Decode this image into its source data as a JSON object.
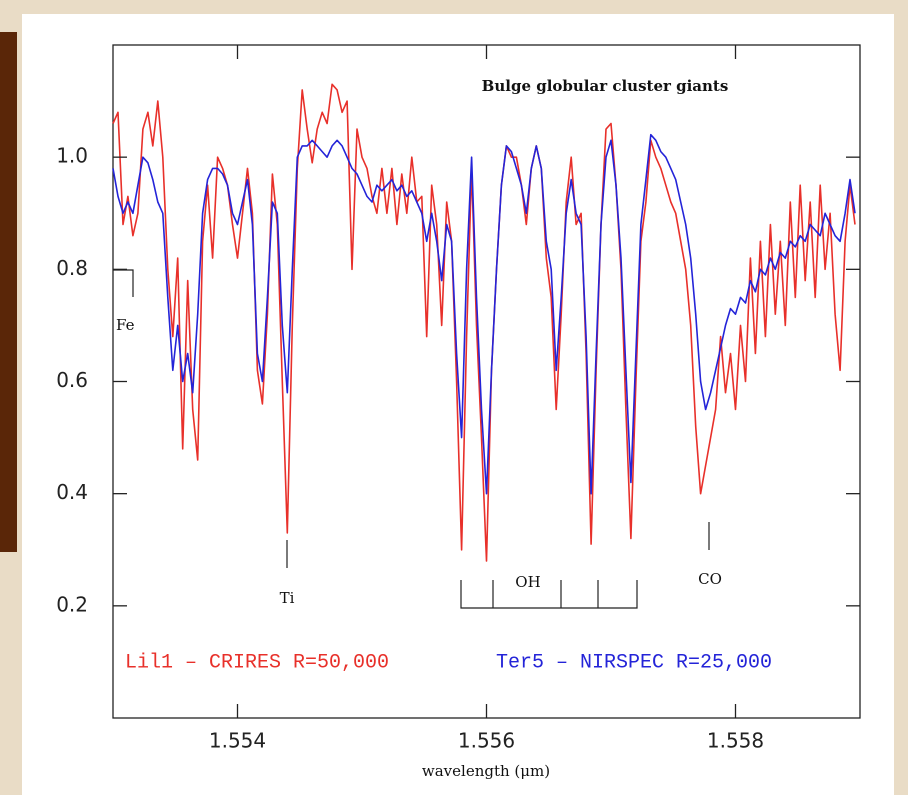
{
  "chart_data": {
    "type": "line",
    "title": "Bulge globular cluster giants",
    "xlabel": "wavelength (μm)",
    "xlim": [
      1.553,
      1.559
    ],
    "ylim": [
      0,
      1.2
    ],
    "xticks": [
      1.554,
      1.556,
      1.558
    ],
    "yticks": [
      0.2,
      0.4,
      0.6,
      0.8,
      {
        "value": 1,
        "label": "1.0"
      }
    ],
    "annotations": [
      "Fe",
      "Ti",
      "OH",
      "CO"
    ],
    "x": [
      1.553,
      1.55304,
      1.55308,
      1.55312,
      1.55316,
      1.5532,
      1.55324,
      1.55328,
      1.55332,
      1.55336,
      1.5534,
      1.55344,
      1.55348,
      1.55352,
      1.55356,
      1.5536,
      1.55364,
      1.55368,
      1.55372,
      1.55376,
      1.5538,
      1.55384,
      1.55388,
      1.55392,
      1.55396,
      1.554,
      1.55404,
      1.55408,
      1.55412,
      1.55416,
      1.5542,
      1.55424,
      1.55428,
      1.55432,
      1.55436,
      1.5544,
      1.55444,
      1.55448,
      1.55452,
      1.55456,
      1.5546,
      1.55464,
      1.55468,
      1.55472,
      1.55476,
      1.5548,
      1.55484,
      1.55488,
      1.55492,
      1.55496,
      1.555,
      1.55504,
      1.55508,
      1.55512,
      1.55516,
      1.5552,
      1.55524,
      1.55528,
      1.55532,
      1.55536,
      1.5554,
      1.55544,
      1.55548,
      1.55552,
      1.55556,
      1.5556,
      1.55564,
      1.55568,
      1.55572,
      1.55576,
      1.5558,
      1.55584,
      1.55588,
      1.55592,
      1.55596,
      1.556,
      1.55604,
      1.55608,
      1.55612,
      1.55616,
      1.5562,
      1.55624,
      1.55628,
      1.55632,
      1.55636,
      1.5564,
      1.55644,
      1.55648,
      1.55652,
      1.55656,
      1.5566,
      1.55664,
      1.55668,
      1.55672,
      1.55676,
      1.5568,
      1.55684,
      1.55688,
      1.55692,
      1.55696,
      1.557,
      1.55704,
      1.55708,
      1.55712,
      1.55716,
      1.5572,
      1.55724,
      1.55728,
      1.55732,
      1.55736,
      1.5574,
      1.55744,
      1.55748,
      1.55752,
      1.55756,
      1.5576,
      1.55764,
      1.55768,
      1.55772,
      1.55776,
      1.5578,
      1.55784,
      1.55788,
      1.55792,
      1.55796,
      1.558,
      1.55804,
      1.55808,
      1.55812,
      1.55816,
      1.5582,
      1.55824,
      1.55828,
      1.55832,
      1.55836,
      1.5584,
      1.55844,
      1.55848,
      1.55852,
      1.55856,
      1.5586,
      1.55864,
      1.55868,
      1.55872,
      1.55876,
      1.5588,
      1.55884,
      1.55888,
      1.55892,
      1.55896
    ],
    "series": [
      {
        "name": "Lil1 – CRIRES R=50,000",
        "color": "#e8302a",
        "values": [
          1.06,
          1.08,
          0.88,
          0.93,
          0.86,
          0.9,
          1.05,
          1.08,
          1.02,
          1.1,
          1.0,
          0.8,
          0.68,
          0.82,
          0.48,
          0.78,
          0.55,
          0.46,
          0.85,
          0.95,
          0.82,
          1.0,
          0.98,
          0.95,
          0.88,
          0.82,
          0.9,
          0.98,
          0.9,
          0.62,
          0.56,
          0.72,
          0.97,
          0.88,
          0.6,
          0.33,
          0.7,
          0.98,
          1.12,
          1.05,
          0.99,
          1.05,
          1.08,
          1.06,
          1.13,
          1.12,
          1.08,
          1.1,
          0.8,
          1.05,
          1.0,
          0.98,
          0.93,
          0.9,
          0.98,
          0.9,
          0.98,
          0.88,
          0.97,
          0.9,
          1.0,
          0.92,
          0.93,
          0.68,
          0.95,
          0.88,
          0.7,
          0.92,
          0.85,
          0.6,
          0.3,
          0.68,
          0.98,
          0.7,
          0.5,
          0.28,
          0.62,
          0.8,
          0.95,
          1.02,
          1.0,
          1.0,
          0.95,
          0.88,
          0.98,
          1.02,
          0.98,
          0.82,
          0.75,
          0.55,
          0.72,
          0.92,
          1.0,
          0.88,
          0.9,
          0.65,
          0.31,
          0.62,
          0.88,
          1.05,
          1.06,
          0.95,
          0.8,
          0.55,
          0.32,
          0.6,
          0.85,
          0.92,
          1.03,
          1.0,
          0.98,
          0.95,
          0.92,
          0.9,
          0.85,
          0.8,
          0.7,
          0.52,
          0.4,
          0.45,
          0.5,
          0.55,
          0.68,
          0.58,
          0.65,
          0.55,
          0.7,
          0.6,
          0.82,
          0.65,
          0.85,
          0.68,
          0.88,
          0.72,
          0.85,
          0.7,
          0.92,
          0.75,
          0.95,
          0.78,
          0.92,
          0.75,
          0.95,
          0.8,
          0.9,
          0.72,
          0.62,
          0.85,
          0.95,
          0.88
        ]
      },
      {
        "name": "Ter5 – NIRSPEC R=25,000",
        "color": "#2424d8",
        "values": [
          0.98,
          0.93,
          0.9,
          0.92,
          0.9,
          0.95,
          1.0,
          0.99,
          0.96,
          0.92,
          0.9,
          0.75,
          0.62,
          0.7,
          0.6,
          0.65,
          0.58,
          0.72,
          0.9,
          0.96,
          0.98,
          0.98,
          0.97,
          0.95,
          0.9,
          0.88,
          0.92,
          0.96,
          0.88,
          0.65,
          0.6,
          0.75,
          0.92,
          0.9,
          0.7,
          0.58,
          0.8,
          1.0,
          1.02,
          1.02,
          1.03,
          1.02,
          1.01,
          1.0,
          1.02,
          1.03,
          1.02,
          1.0,
          0.98,
          0.97,
          0.95,
          0.93,
          0.92,
          0.95,
          0.94,
          0.95,
          0.96,
          0.94,
          0.95,
          0.93,
          0.94,
          0.92,
          0.9,
          0.85,
          0.9,
          0.85,
          0.78,
          0.88,
          0.85,
          0.65,
          0.5,
          0.8,
          1.0,
          0.75,
          0.55,
          0.4,
          0.62,
          0.8,
          0.95,
          1.02,
          1.01,
          0.98,
          0.95,
          0.9,
          0.98,
          1.02,
          0.98,
          0.85,
          0.8,
          0.62,
          0.75,
          0.9,
          0.96,
          0.9,
          0.88,
          0.68,
          0.4,
          0.65,
          0.88,
          1.0,
          1.03,
          0.95,
          0.82,
          0.62,
          0.42,
          0.65,
          0.88,
          0.96,
          1.04,
          1.03,
          1.01,
          1.0,
          0.98,
          0.96,
          0.92,
          0.88,
          0.82,
          0.72,
          0.6,
          0.55,
          0.58,
          0.62,
          0.66,
          0.7,
          0.73,
          0.72,
          0.75,
          0.74,
          0.78,
          0.76,
          0.8,
          0.79,
          0.82,
          0.8,
          0.83,
          0.82,
          0.85,
          0.84,
          0.86,
          0.85,
          0.88,
          0.87,
          0.86,
          0.9,
          0.88,
          0.86,
          0.85,
          0.9,
          0.96,
          0.9
        ]
      }
    ]
  }
}
